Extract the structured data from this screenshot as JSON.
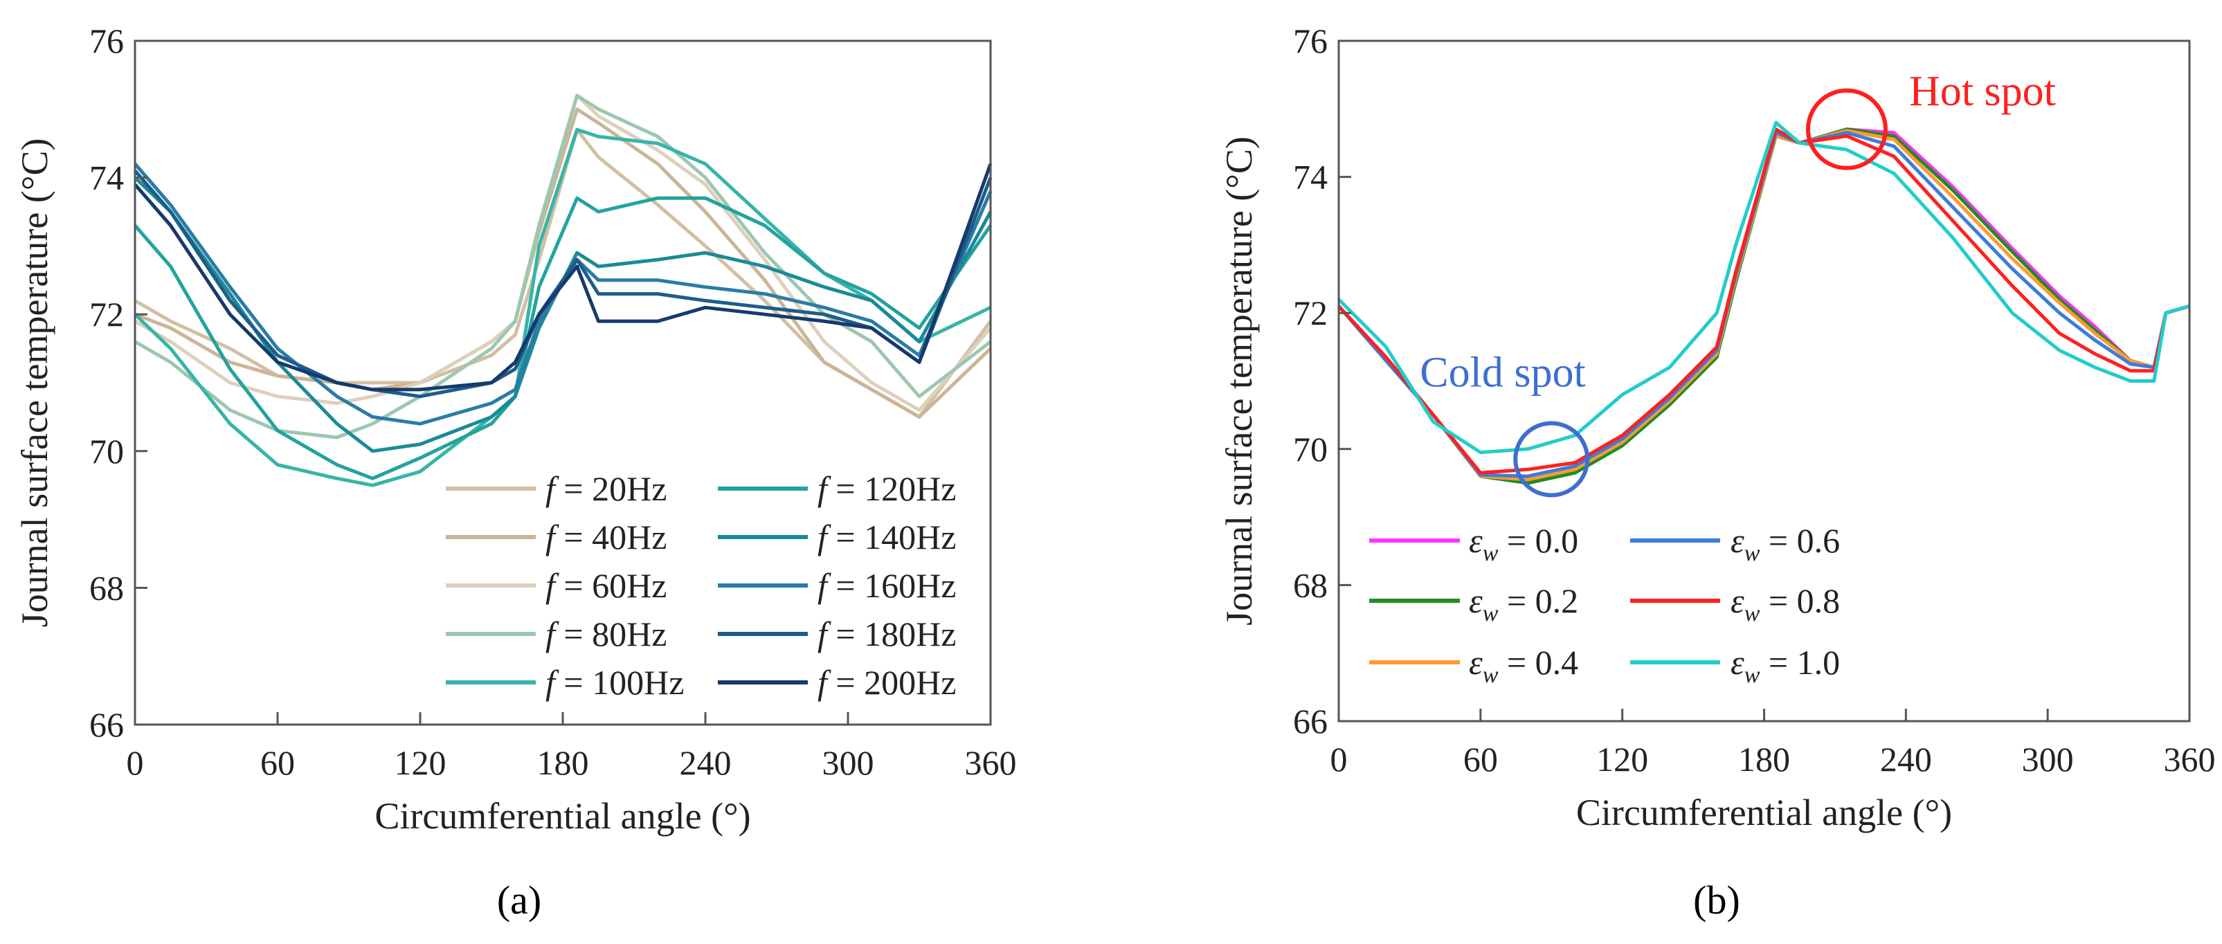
{
  "chart_data": [
    {
      "type": "line",
      "panel_label": "(a)",
      "xlabel": "Circumferential angle (°)",
      "ylabel": "Journal surface temperature (°C)",
      "xlim": [
        0,
        360
      ],
      "ylim": [
        66,
        76
      ],
      "xticks": [
        0,
        60,
        120,
        180,
        240,
        300,
        360
      ],
      "yticks": [
        66,
        68,
        70,
        72,
        74,
        76
      ],
      "legend_position": "bottom-right",
      "x": [
        0,
        15,
        40,
        60,
        85,
        100,
        120,
        150,
        160,
        170,
        186,
        195,
        220,
        240,
        265,
        290,
        310,
        330,
        360
      ],
      "series": [
        {
          "sym": "f",
          "sub": "",
          "name": " = 20Hz",
          "color": "#d2bfa3",
          "values": [
            72.2,
            71.9,
            71.5,
            71.1,
            71.0,
            71.0,
            71.0,
            71.4,
            71.7,
            72.8,
            74.7,
            74.3,
            73.6,
            73.0,
            72.2,
            71.3,
            70.9,
            70.5,
            71.9
          ]
        },
        {
          "sym": "f",
          "sub": "",
          "name": " = 40Hz",
          "color": "#cbb597",
          "values": [
            72.0,
            71.8,
            71.3,
            71.1,
            71.0,
            70.9,
            71.0,
            71.6,
            71.9,
            73.2,
            75.0,
            74.8,
            74.2,
            73.5,
            72.5,
            71.3,
            70.9,
            70.5,
            71.5
          ]
        },
        {
          "sym": "f",
          "sub": "",
          "name": " = 60Hz",
          "color": "#ddd0bb",
          "values": [
            71.9,
            71.6,
            71.0,
            70.8,
            70.7,
            70.8,
            71.0,
            71.6,
            71.9,
            73.3,
            75.2,
            74.9,
            74.4,
            73.9,
            72.8,
            71.6,
            71.0,
            70.6,
            71.8
          ]
        },
        {
          "sym": "f",
          "sub": "",
          "name": " = 80Hz",
          "color": "#9cc7b0",
          "values": [
            71.6,
            71.3,
            70.6,
            70.3,
            70.2,
            70.4,
            70.8,
            71.5,
            71.9,
            73.3,
            75.2,
            75.0,
            74.6,
            74.0,
            72.9,
            72.0,
            71.6,
            70.8,
            71.6
          ]
        },
        {
          "sym": "f",
          "sub": "",
          "name": " = 100Hz",
          "color": "#35b5a8",
          "values": [
            72.0,
            71.5,
            70.4,
            69.8,
            69.6,
            69.5,
            69.7,
            70.5,
            70.8,
            73.0,
            74.7,
            74.6,
            74.5,
            74.2,
            73.4,
            72.6,
            72.2,
            71.6,
            72.1
          ]
        },
        {
          "sym": "f",
          "sub": "",
          "name": " = 120Hz",
          "color": "#22a39e",
          "values": [
            73.3,
            72.7,
            71.2,
            70.3,
            69.8,
            69.6,
            69.9,
            70.4,
            70.8,
            72.4,
            73.7,
            73.5,
            73.7,
            73.7,
            73.3,
            72.6,
            72.3,
            71.8,
            73.3
          ]
        },
        {
          "sym": "f",
          "sub": "",
          "name": " = 140Hz",
          "color": "#1a8a98",
          "values": [
            74.0,
            73.5,
            72.3,
            71.3,
            70.4,
            70.0,
            70.1,
            70.5,
            70.8,
            71.8,
            72.9,
            72.7,
            72.8,
            72.9,
            72.7,
            72.4,
            72.2,
            71.6,
            73.5
          ]
        },
        {
          "sym": "f",
          "sub": "",
          "name": " = 160Hz",
          "color": "#2a7ca6",
          "values": [
            74.2,
            73.6,
            72.4,
            71.5,
            70.8,
            70.5,
            70.4,
            70.7,
            70.9,
            71.9,
            72.8,
            72.5,
            72.5,
            72.4,
            72.3,
            72.1,
            71.9,
            71.4,
            73.8
          ]
        },
        {
          "sym": "f",
          "sub": "",
          "name": " = 180Hz",
          "color": "#1d5d8a",
          "values": [
            74.1,
            73.5,
            72.2,
            71.4,
            71.0,
            70.9,
            70.8,
            71.0,
            71.2,
            72.0,
            72.8,
            72.3,
            72.3,
            72.2,
            72.1,
            72.0,
            71.8,
            71.3,
            74.0
          ]
        },
        {
          "sym": "f",
          "sub": "",
          "name": " = 200Hz",
          "color": "#163a6c",
          "values": [
            73.9,
            73.3,
            72.0,
            71.3,
            71.0,
            70.9,
            70.9,
            71.0,
            71.3,
            72.0,
            72.7,
            71.9,
            71.9,
            72.1,
            72.0,
            71.9,
            71.8,
            71.3,
            74.2
          ]
        }
      ]
    },
    {
      "type": "line",
      "panel_label": "(b)",
      "xlabel": "Circumferential angle (°)",
      "ylabel": "Journal surface temperature (°C)",
      "xlim": [
        0,
        360
      ],
      "ylim": [
        66,
        76
      ],
      "xticks": [
        0,
        60,
        120,
        180,
        240,
        300,
        360
      ],
      "yticks": [
        66,
        68,
        70,
        72,
        74,
        76
      ],
      "legend_position": "bottom-left",
      "annotations": [
        {
          "text": "Hot spot",
          "color": "#ff1f1f",
          "x": 215,
          "y": 74.7
        },
        {
          "text": "Cold spot",
          "color": "#3d6fd0",
          "x": 90,
          "y": 69.85
        }
      ],
      "x": [
        0,
        20,
        40,
        60,
        80,
        100,
        120,
        140,
        160,
        168,
        185,
        195,
        215,
        235,
        260,
        285,
        305,
        320,
        335,
        345,
        350,
        360
      ],
      "series": [
        {
          "sym": "ε",
          "sub": "w",
          "name": " = 0.0",
          "color": "#ff33ff",
          "values": [
            72.1,
            71.3,
            70.5,
            69.6,
            69.55,
            69.7,
            70.1,
            70.7,
            71.4,
            72.5,
            74.6,
            74.5,
            74.7,
            74.65,
            73.85,
            72.95,
            72.25,
            71.8,
            71.3,
            71.2,
            72.0,
            72.1
          ]
        },
        {
          "sym": "ε",
          "sub": "w",
          "name": " = 0.2",
          "color": "#228b22",
          "values": [
            72.1,
            71.3,
            70.5,
            69.6,
            69.5,
            69.65,
            70.05,
            70.65,
            71.35,
            72.45,
            74.6,
            74.5,
            74.7,
            74.6,
            73.8,
            72.9,
            72.2,
            71.75,
            71.3,
            71.2,
            72.0,
            72.1
          ]
        },
        {
          "sym": "ε",
          "sub": "w",
          "name": " = 0.4",
          "color": "#ff9933",
          "values": [
            72.1,
            71.3,
            70.5,
            69.6,
            69.55,
            69.7,
            70.1,
            70.7,
            71.4,
            72.5,
            74.6,
            74.5,
            74.68,
            74.55,
            73.7,
            72.8,
            72.15,
            71.7,
            71.3,
            71.2,
            72.0,
            72.1
          ]
        },
        {
          "sym": "ε",
          "sub": "w",
          "name": " = 0.6",
          "color": "#3b7ddd",
          "values": [
            72.1,
            71.3,
            70.5,
            69.62,
            69.6,
            69.75,
            70.15,
            70.75,
            71.45,
            72.55,
            74.65,
            74.5,
            74.65,
            74.45,
            73.55,
            72.65,
            72.0,
            71.6,
            71.25,
            71.2,
            72.0,
            72.1
          ]
        },
        {
          "sym": "ε",
          "sub": "w",
          "name": " = 0.8",
          "color": "#ff2020",
          "values": [
            72.1,
            71.35,
            70.5,
            69.65,
            69.7,
            69.8,
            70.2,
            70.8,
            71.5,
            72.6,
            74.7,
            74.5,
            74.6,
            74.3,
            73.35,
            72.4,
            71.7,
            71.4,
            71.15,
            71.15,
            72.0,
            72.1
          ]
        },
        {
          "sym": "ε",
          "sub": "w",
          "name": " = 1.0",
          "color": "#22cccc",
          "values": [
            72.2,
            71.5,
            70.4,
            69.95,
            70.0,
            70.2,
            70.8,
            71.2,
            72.0,
            73.0,
            74.8,
            74.5,
            74.4,
            74.05,
            73.1,
            72.0,
            71.45,
            71.2,
            71.0,
            71.0,
            72.0,
            72.1
          ]
        }
      ]
    }
  ]
}
